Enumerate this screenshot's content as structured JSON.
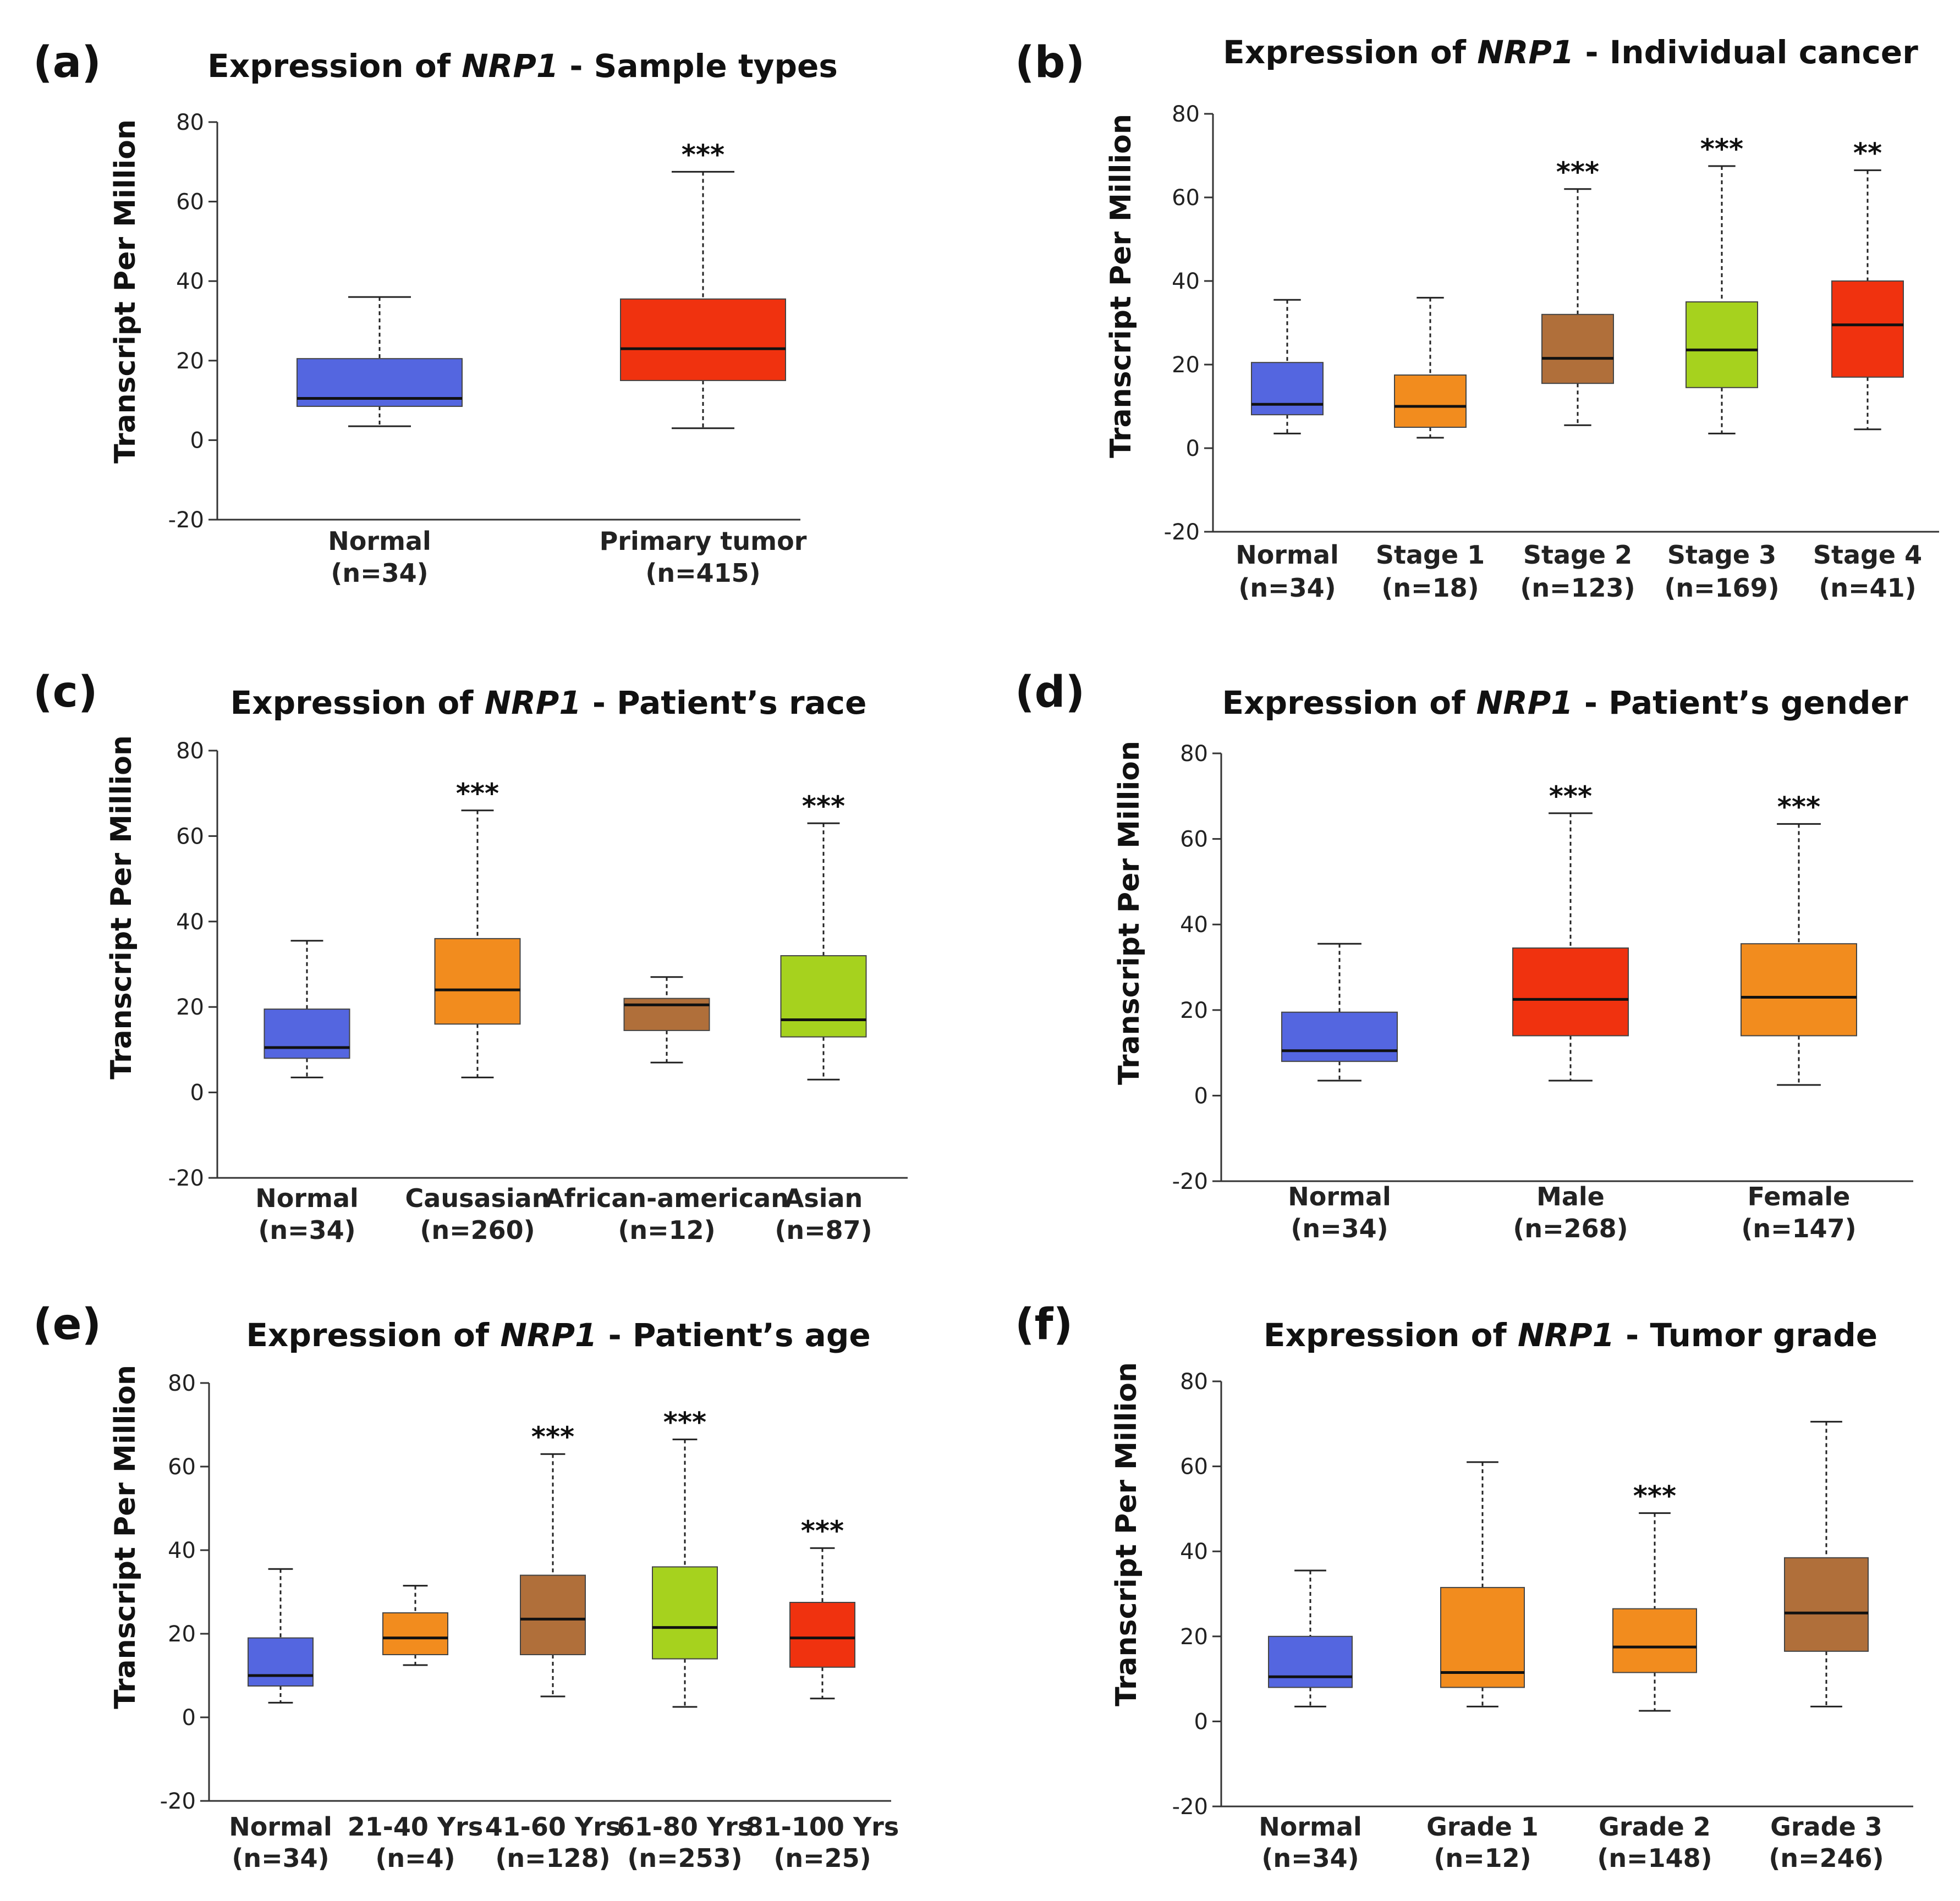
{
  "chart_data": [
    {
      "type": "boxplot",
      "panel_label": "(a)",
      "title": {
        "prefix": "Expression of ",
        "gene": "NRP1",
        "suffix": " - Sample types"
      },
      "ylabel": "Transcript Per Million",
      "ylim": [
        -20,
        80
      ],
      "yticks": [
        "80",
        "60",
        "40",
        "20",
        "0",
        "-20"
      ],
      "groups": [
        {
          "name": "Normal",
          "n": "(n=34)",
          "min": 3.5,
          "q1": 8.5,
          "median": 10.5,
          "q3": 20.5,
          "max": 36,
          "color": "#5466e0",
          "sig": ""
        },
        {
          "name": "Primary tumor",
          "n": "(n=415)",
          "min": 3,
          "q1": 15,
          "median": 23,
          "q3": 35.5,
          "max": 67.5,
          "color": "#f0320f",
          "sig": "***"
        }
      ]
    },
    {
      "type": "boxplot",
      "panel_label": "(b)",
      "title": {
        "prefix": "Expression of ",
        "gene": "NRP1",
        "suffix": " - Individual cancer"
      },
      "ylabel": "Transcript Per Million",
      "ylim": [
        -20,
        80
      ],
      "yticks": [
        "80",
        "60",
        "40",
        "20",
        "0",
        "-20"
      ],
      "groups": [
        {
          "name": "Normal",
          "n": "(n=34)",
          "min": 3.5,
          "q1": 8,
          "median": 10.5,
          "q3": 20.5,
          "max": 35.5,
          "color": "#5466e0",
          "sig": ""
        },
        {
          "name": "Stage 1",
          "n": "(n=18)",
          "min": 2.5,
          "q1": 5,
          "median": 10,
          "q3": 17.5,
          "max": 36,
          "color": "#f28c1e",
          "sig": ""
        },
        {
          "name": "Stage 2",
          "n": "(n=123)",
          "min": 5.5,
          "q1": 15.5,
          "median": 21.5,
          "q3": 32,
          "max": 62,
          "color": "#b06f3a",
          "sig": "***"
        },
        {
          "name": "Stage 3",
          "n": "(n=169)",
          "min": 3.5,
          "q1": 14.5,
          "median": 23.5,
          "q3": 35,
          "max": 67.5,
          "color": "#a6d21e",
          "sig": "***"
        },
        {
          "name": "Stage 4",
          "n": "(n=41)",
          "min": 4.5,
          "q1": 17,
          "median": 29.5,
          "q3": 40,
          "max": 66.5,
          "color": "#f0320f",
          "sig": "**"
        }
      ]
    },
    {
      "type": "boxplot",
      "panel_label": "(c)",
      "title": {
        "prefix": "Expression of ",
        "gene": "NRP1",
        "suffix": " - Patient’s race"
      },
      "ylabel": "Transcript Per Million",
      "ylim": [
        -20,
        80
      ],
      "yticks": [
        "80",
        "60",
        "40",
        "20",
        "0",
        "-20"
      ],
      "groups": [
        {
          "name": "Normal",
          "n": "(n=34)",
          "min": 3.5,
          "q1": 8,
          "median": 10.5,
          "q3": 19.5,
          "max": 35.5,
          "color": "#5466e0",
          "sig": ""
        },
        {
          "name": "Causasian",
          "n": "(n=260)",
          "min": 3.5,
          "q1": 16,
          "median": 24,
          "q3": 36,
          "max": 66,
          "color": "#f28c1e",
          "sig": "***"
        },
        {
          "name": "African-american",
          "n": "(n=12)",
          "min": 7,
          "q1": 14.5,
          "median": 20.5,
          "q3": 22,
          "max": 27,
          "color": "#b06f3a",
          "sig": ""
        },
        {
          "name": "Asian",
          "n": "(n=87)",
          "min": 3,
          "q1": 13,
          "median": 17,
          "q3": 32,
          "max": 63,
          "color": "#a6d21e",
          "sig": "***"
        }
      ]
    },
    {
      "type": "boxplot",
      "panel_label": "(d)",
      "title": {
        "prefix": "Expression of ",
        "gene": "NRP1",
        "suffix": " - Patient’s gender"
      },
      "ylabel": "Transcript Per Million",
      "ylim": [
        -20,
        80
      ],
      "yticks": [
        "80",
        "60",
        "40",
        "20",
        "0",
        "-20"
      ],
      "groups": [
        {
          "name": "Normal",
          "n": "(n=34)",
          "min": 3.5,
          "q1": 8,
          "median": 10.5,
          "q3": 19.5,
          "max": 35.5,
          "color": "#5466e0",
          "sig": ""
        },
        {
          "name": "Male",
          "n": "(n=268)",
          "min": 3.5,
          "q1": 14,
          "median": 22.5,
          "q3": 34.5,
          "max": 66,
          "color": "#f0320f",
          "sig": "***"
        },
        {
          "name": "Female",
          "n": "(n=147)",
          "min": 2.5,
          "q1": 14,
          "median": 23,
          "q3": 35.5,
          "max": 63.5,
          "color": "#f28c1e",
          "sig": "***"
        }
      ]
    },
    {
      "type": "boxplot",
      "panel_label": "(e)",
      "title": {
        "prefix": "Expression of ",
        "gene": "NRP1",
        "suffix": " - Patient’s age"
      },
      "ylabel": "Transcript Per Million",
      "ylim": [
        -20,
        80
      ],
      "yticks": [
        "80",
        "60",
        "40",
        "20",
        "0",
        "-20"
      ],
      "groups": [
        {
          "name": "Normal",
          "n": "(n=34)",
          "min": 3.5,
          "q1": 7.5,
          "median": 10,
          "q3": 19,
          "max": 35.5,
          "color": "#5466e0",
          "sig": ""
        },
        {
          "name": "21-40 Yrs",
          "n": "(n=4)",
          "min": 12.5,
          "q1": 15,
          "median": 19,
          "q3": 25,
          "max": 31.5,
          "color": "#f28c1e",
          "sig": ""
        },
        {
          "name": "41-60 Yrs",
          "n": "(n=128)",
          "min": 5,
          "q1": 15,
          "median": 23.5,
          "q3": 34,
          "max": 63,
          "color": "#b06f3a",
          "sig": "***"
        },
        {
          "name": "61-80 Yrs",
          "n": "(n=253)",
          "min": 2.5,
          "q1": 14,
          "median": 21.5,
          "q3": 36,
          "max": 66.5,
          "color": "#a6d21e",
          "sig": "***"
        },
        {
          "name": "81-100 Yrs",
          "n": "(n=25)",
          "min": 4.5,
          "q1": 12,
          "median": 19,
          "q3": 27.5,
          "max": 40.5,
          "color": "#f0320f",
          "sig": "***"
        }
      ]
    },
    {
      "type": "boxplot",
      "panel_label": "(f)",
      "title": {
        "prefix": "Expression of ",
        "gene": "NRP1",
        "suffix": " - Tumor grade"
      },
      "ylabel": "Transcript Per Million",
      "ylim": [
        -20,
        80
      ],
      "yticks": [
        "80",
        "60",
        "40",
        "20",
        "0",
        "-20"
      ],
      "groups": [
        {
          "name": "Normal",
          "n": "(n=34)",
          "min": 3.5,
          "q1": 8,
          "median": 10.5,
          "q3": 20,
          "max": 35.5,
          "color": "#5466e0",
          "sig": ""
        },
        {
          "name": "Grade 1",
          "n": "(n=12)",
          "min": 3.5,
          "q1": 8,
          "median": 11.5,
          "q3": 31.5,
          "max": 61,
          "color": "#f28c1e",
          "sig": ""
        },
        {
          "name": "Grade 2",
          "n": "(n=148)",
          "min": 2.5,
          "q1": 11.5,
          "median": 17.5,
          "q3": 26.5,
          "max": 49,
          "color": "#f28c1e",
          "sig": "***"
        },
        {
          "name": "Grade 3",
          "n": "(n=246)",
          "min": 3.5,
          "q1": 16.5,
          "median": 25.5,
          "q3": 38.5,
          "max": 70.5,
          "color": "#b06f3a",
          "sig": ""
        }
      ]
    }
  ]
}
